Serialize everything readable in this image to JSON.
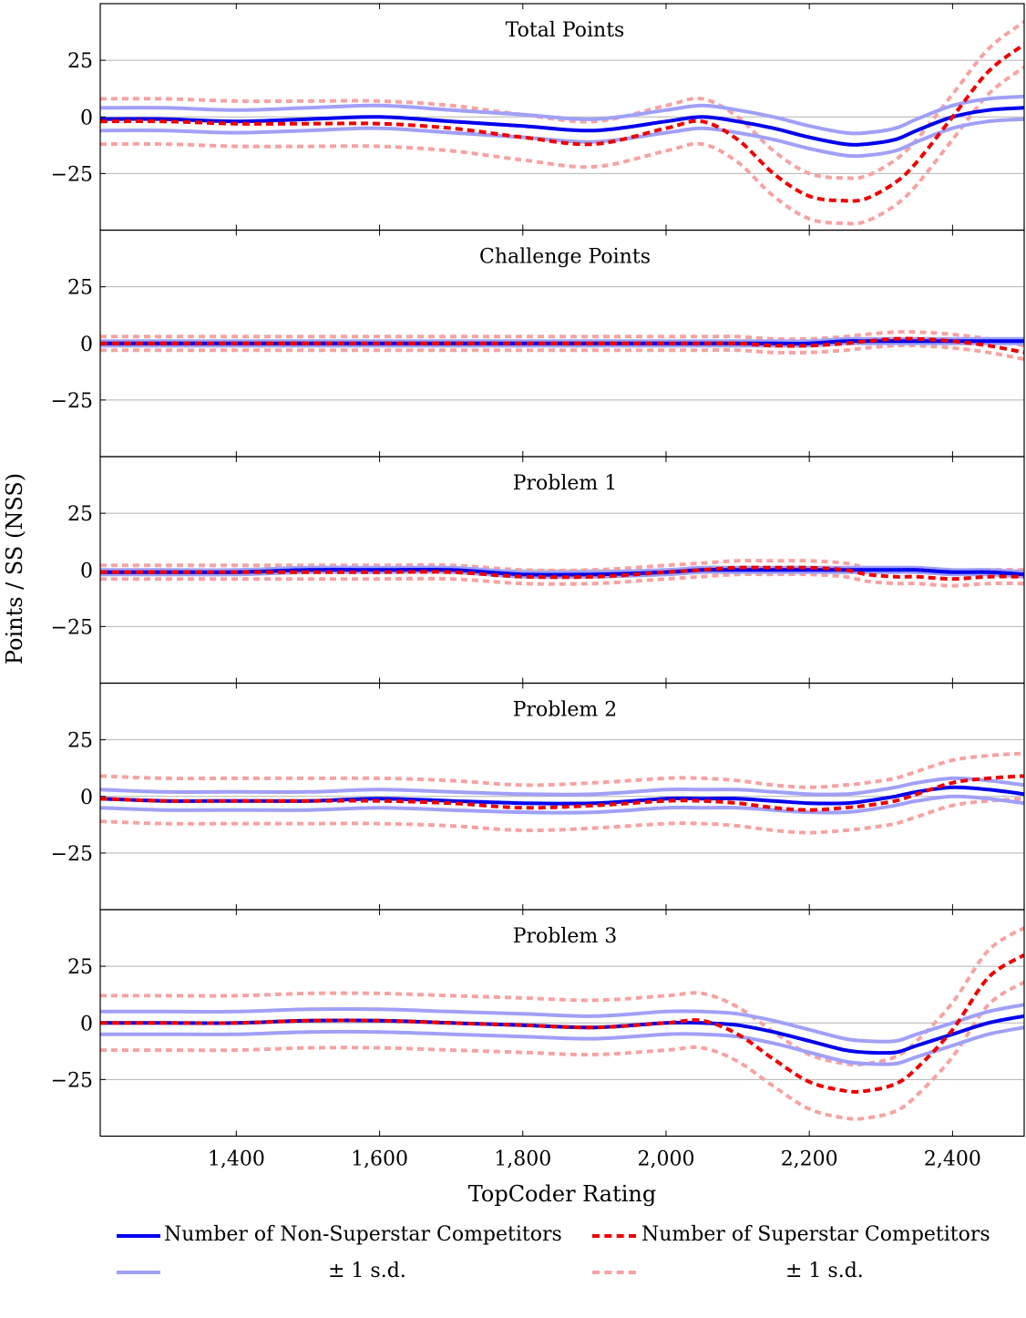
{
  "chart_data": {
    "type": "line",
    "xlabel": "TopCoder Rating",
    "ylabel": "Points / SS (NSS)",
    "xlim": [
      1210,
      2500
    ],
    "ylim": [
      -50,
      50
    ],
    "x_ticks": [
      1400,
      1600,
      1800,
      2000,
      2200,
      2400
    ],
    "x_tick_labels": [
      "1,400",
      "1,600",
      "1,800",
      "2,000",
      "2,200",
      "2,400"
    ],
    "y_ticks": [
      25,
      0,
      -25
    ],
    "y_tick_labels": [
      "25",
      "0",
      "−25"
    ],
    "grid": "horizontal",
    "legend_position": "bottom",
    "x": [
      1210,
      1300,
      1400,
      1500,
      1600,
      1700,
      1800,
      1900,
      2000,
      2050,
      2100,
      2150,
      2200,
      2250,
      2280,
      2320,
      2350,
      2400,
      2450,
      2500
    ],
    "colors": {
      "nss": "#0000ee",
      "nss_sd": "#a0a0f8",
      "ss": "#ee0000",
      "ss_sd": "#f6a3a3"
    },
    "panels": [
      {
        "title": "Total Points",
        "nss": [
          -1,
          -1,
          -2,
          -1,
          0,
          -2,
          -4,
          -6,
          -2,
          0,
          -2,
          -5,
          -9,
          -12,
          -12,
          -10,
          -6,
          0,
          3,
          4
        ],
        "ss": [
          -2,
          -2,
          -3,
          -3,
          -3,
          -5,
          -9,
          -12,
          -5,
          -2,
          -10,
          -25,
          -35,
          -37,
          -36,
          -29,
          -20,
          0,
          20,
          32
        ]
      },
      {
        "title": "Challenge Points",
        "nss": [
          0,
          0,
          0,
          0,
          0,
          0,
          0,
          0,
          0,
          0,
          0,
          0,
          0,
          1,
          1,
          1,
          1,
          1,
          1,
          1
        ],
        "ss": [
          0,
          0,
          0,
          0,
          0,
          0,
          0,
          0,
          0,
          0,
          0,
          -1,
          -1,
          0,
          1,
          2,
          2,
          1,
          -1,
          -4
        ]
      },
      {
        "title": "Problem 1",
        "nss": [
          -1,
          -1,
          -1,
          0,
          0,
          0,
          -2,
          -2,
          -1,
          0,
          0,
          0,
          0,
          0,
          0,
          0,
          0,
          -1,
          -1,
          -2
        ],
        "ss": [
          -1,
          -1,
          -1,
          -1,
          -1,
          -1,
          -3,
          -3,
          -1,
          0,
          1,
          1,
          1,
          0,
          -2,
          -3,
          -3,
          -4,
          -3,
          -3
        ]
      },
      {
        "title": "Problem 2",
        "nss": [
          -1,
          -2,
          -2,
          -2,
          -1,
          -2,
          -3,
          -3,
          -1,
          -1,
          -1,
          -2,
          -3,
          -3,
          -2,
          0,
          2,
          4,
          3,
          1
        ],
        "ss": [
          -1,
          -2,
          -2,
          -2,
          -2,
          -3,
          -5,
          -4,
          -2,
          -2,
          -3,
          -5,
          -6,
          -5,
          -4,
          -2,
          1,
          6,
          8,
          9
        ]
      },
      {
        "title": "Problem 3",
        "nss": [
          0,
          0,
          0,
          1,
          1,
          0,
          -1,
          -2,
          0,
          0,
          -1,
          -4,
          -8,
          -12,
          -13,
          -13,
          -10,
          -5,
          0,
          3
        ],
        "ss": [
          0,
          0,
          0,
          1,
          1,
          0,
          -1,
          -2,
          0,
          1,
          -5,
          -16,
          -26,
          -30,
          -30,
          -27,
          -20,
          -3,
          20,
          30
        ]
      }
    ],
    "sd": [
      {
        "nss": 5,
        "ss": 10
      },
      {
        "nss": 1,
        "ss": 3
      },
      {
        "nss": 1,
        "ss": 3
      },
      {
        "nss": 4,
        "ss": 10
      },
      {
        "nss": 5,
        "ss": 12
      }
    ]
  },
  "legend": {
    "nss_label": "Number of Non-Superstar Competitors",
    "ss_label": "Number of Superstar Competitors",
    "nss_sd_label": "± 1 s.d.",
    "ss_sd_label": "± 1 s.d."
  }
}
